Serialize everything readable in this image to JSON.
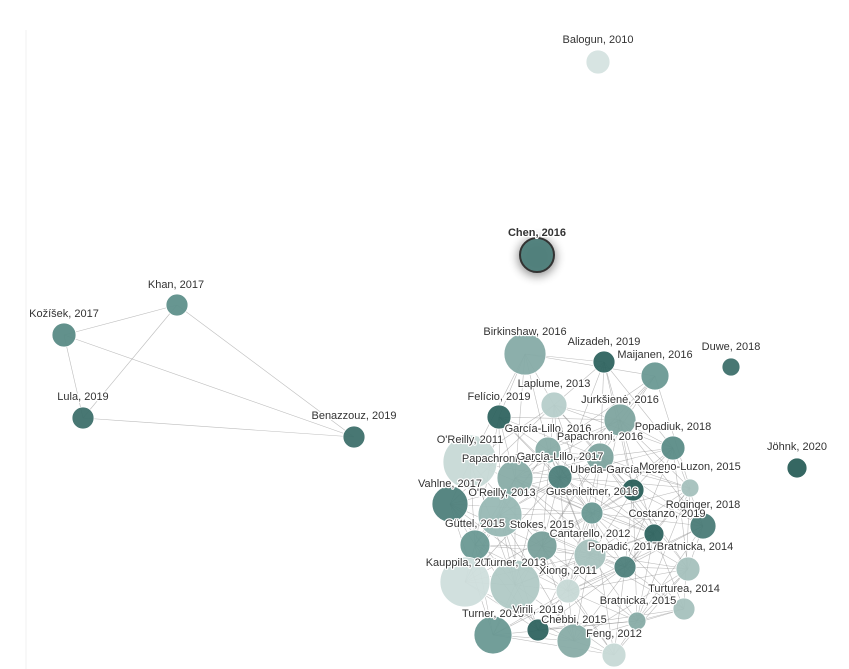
{
  "nodes": [
    {
      "label": "Balogun, 2010"
    },
    {
      "label": "Chen, 2016"
    },
    {
      "label": "Khan, 2017"
    },
    {
      "label": "Kožíšek, 2017"
    },
    {
      "label": "Lula, 2019"
    },
    {
      "label": "Benazzouz, 2019"
    },
    {
      "label": "Birkinshaw, 2016"
    },
    {
      "label": "Alizadeh, 2019"
    },
    {
      "label": "Maijanen, 2016"
    },
    {
      "label": "Duwe, 2018"
    },
    {
      "label": "Laplume, 2013"
    },
    {
      "label": "Felício, 2019"
    },
    {
      "label": "Jurkšienė, 2016"
    },
    {
      "label": "O'Reilly, 2011"
    },
    {
      "label": "García-Lillo, 2016"
    },
    {
      "label": "Papachroni, 2016"
    },
    {
      "label": "Popadiuk, 2018"
    },
    {
      "label": "Papachroni, 2015"
    },
    {
      "label": "García-Lillo, 2017"
    },
    {
      "label": "Ubeda-García, 2020"
    },
    {
      "label": "Moreno-Luzon, 2015"
    },
    {
      "label": "Jöhnk, 2020"
    },
    {
      "label": "Vahlne, 2017"
    },
    {
      "label": "O'Reilly, 2013"
    },
    {
      "label": "Gusenleitner, 2016"
    },
    {
      "label": "Roginger, 2018"
    },
    {
      "label": "Costanzo, 2019"
    },
    {
      "label": "Güttel, 2015"
    },
    {
      "label": "Stokes, 2015"
    },
    {
      "label": "Cantarello, 2012"
    },
    {
      "label": "Popadić, 2017"
    },
    {
      "label": "Bratnicka, 2014"
    },
    {
      "label": "Kauppila, 2011"
    },
    {
      "label": "Turner, 2013"
    },
    {
      "label": "Xiong, 2011"
    },
    {
      "label": "Turturea, 2014"
    },
    {
      "label": "Bratnicka, 2015"
    },
    {
      "label": "Turner, 2015"
    },
    {
      "label": "Virili, 2019"
    },
    {
      "label": "Chebbi, 2015"
    },
    {
      "label": "Feng, 2012"
    }
  ]
}
